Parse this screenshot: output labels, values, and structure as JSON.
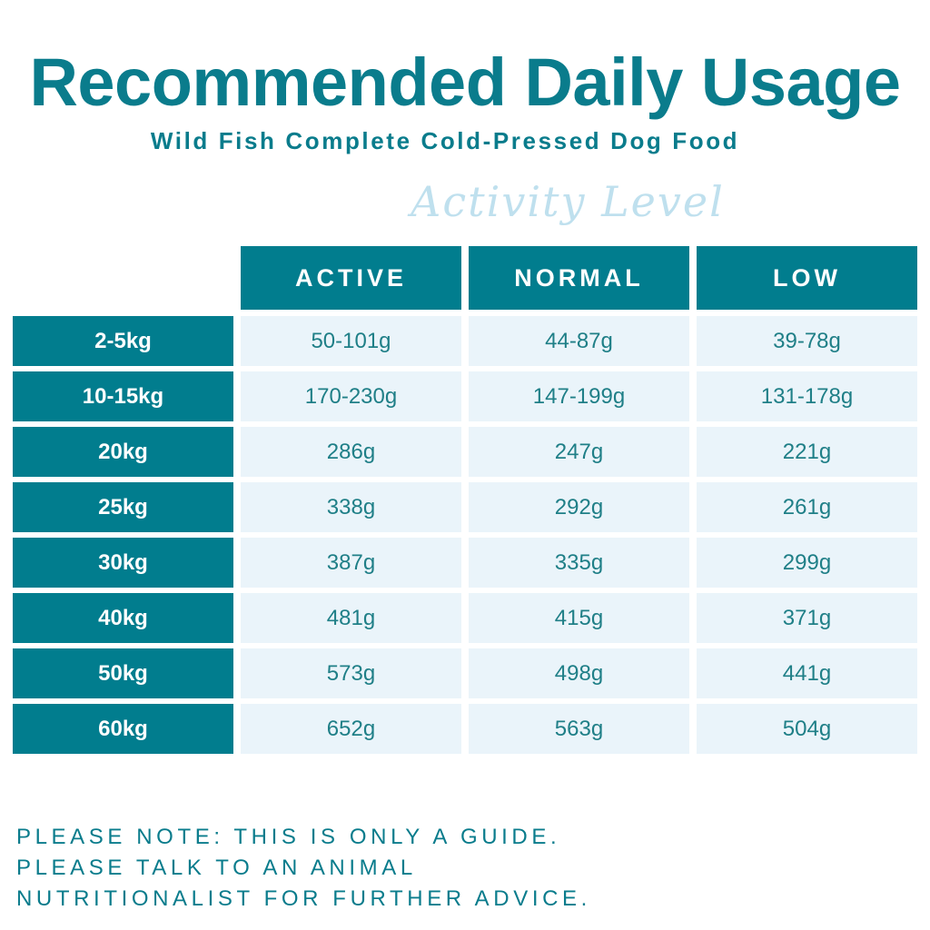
{
  "header": {
    "title": "Recommended Daily Usage",
    "subtitle": "Wild Fish Complete Cold-Pressed Dog Food",
    "script": "Activity Level"
  },
  "table": {
    "columns": [
      "ACTIVE",
      "NORMAL",
      "LOW"
    ],
    "rows": [
      [
        "2-5kg",
        "50-101g",
        "44-87g",
        "39-78g"
      ],
      [
        "10-15kg",
        "170-230g",
        "147-199g",
        "131-178g"
      ],
      [
        "20kg",
        "286g",
        "247g",
        "221g"
      ],
      [
        "25kg",
        "338g",
        "292g",
        "261g"
      ],
      [
        "30kg",
        "387g",
        "335g",
        "299g"
      ],
      [
        "40kg",
        "481g",
        "415g",
        "371g"
      ],
      [
        "50kg",
        "573g",
        "498g",
        "441g"
      ],
      [
        "60kg",
        "652g",
        "563g",
        "504g"
      ]
    ]
  },
  "note": [
    "PLEASE NOTE: THIS IS ONLY A GUIDE.",
    "PLEASE TALK TO AN ANIMAL",
    "NUTRITIONALIST FOR FURTHER ADVICE."
  ]
}
